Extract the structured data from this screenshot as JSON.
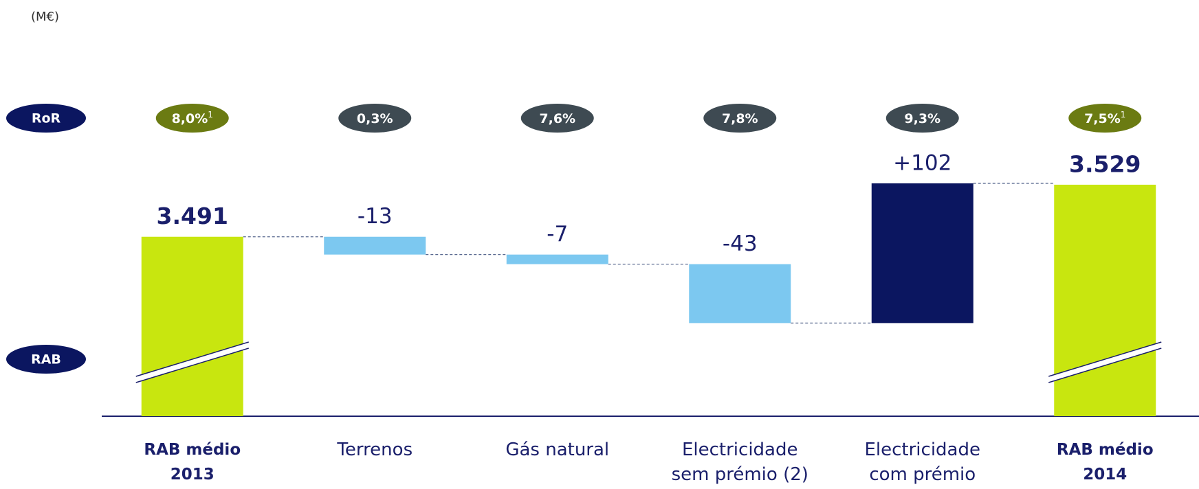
{
  "chart_data": {
    "type": "waterfall",
    "unit_label": "(M€)",
    "ylabel": "RAB",
    "categories": [
      "RAB médio\n2013",
      "Terrenos",
      "Gás natural",
      "Electricidade\nsem prémio (2)",
      "Electricidade\ncom prémio",
      "RAB médio\n2014"
    ],
    "measure": [
      "total",
      "relative",
      "relative",
      "relative",
      "relative",
      "total"
    ],
    "values": [
      3491,
      -13,
      -7,
      -43,
      102,
      3529
    ],
    "value_labels": [
      "3.491",
      "-13",
      "-7",
      "-43",
      "+102",
      "3.529"
    ],
    "colors": {
      "total": "#c8e60f",
      "decrease": "#7cc8f0",
      "increase": "#0b1660"
    },
    "ylim": [
      3360,
      3540
    ],
    "y_break": true,
    "ror": {
      "label": "RoR",
      "values": [
        8.0,
        0.3,
        7.6,
        7.8,
        9.3,
        7.5
      ],
      "value_labels": [
        "8,0%",
        "0,3%",
        "7,6%",
        "7,8%",
        "9,3%",
        "7,5%"
      ],
      "notes": [
        "1",
        null,
        null,
        null,
        null,
        "1"
      ],
      "total_color": "#6b7b12",
      "color": "#3e4a52"
    }
  }
}
